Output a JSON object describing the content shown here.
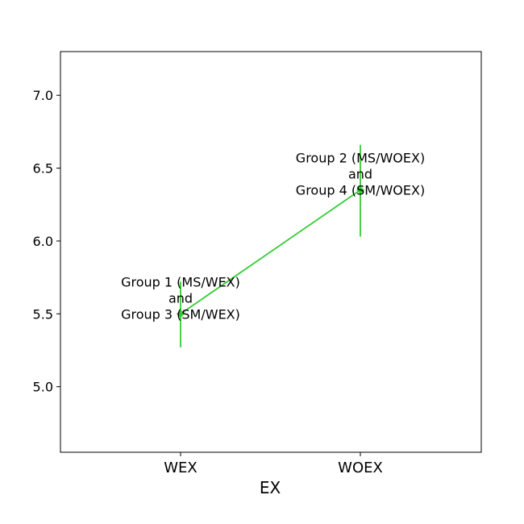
{
  "chart_data": {
    "type": "line",
    "title": "",
    "xlabel": "EX",
    "ylabel": "",
    "categories": [
      "WEX",
      "WOEX"
    ],
    "series": [
      {
        "values": [
          5.5,
          6.35
        ],
        "error_low": [
          5.27,
          6.03
        ],
        "error_high": [
          5.72,
          6.66
        ],
        "color": "#33cc33"
      }
    ],
    "ylim": [
      4.55,
      7.3
    ],
    "yticks": [
      "5.0",
      "5.5",
      "6.0",
      "6.5",
      "7.0"
    ],
    "annotations": [
      {
        "lines": [
          "Group 1 (MS/WEX)",
          "and",
          "Group 3 (SM/WEX)"
        ]
      },
      {
        "lines": [
          "Group 2 (MS/WOEX)",
          "and",
          "Group 4 (SM/WOEX)"
        ]
      }
    ],
    "grid": false,
    "legend": "none"
  }
}
